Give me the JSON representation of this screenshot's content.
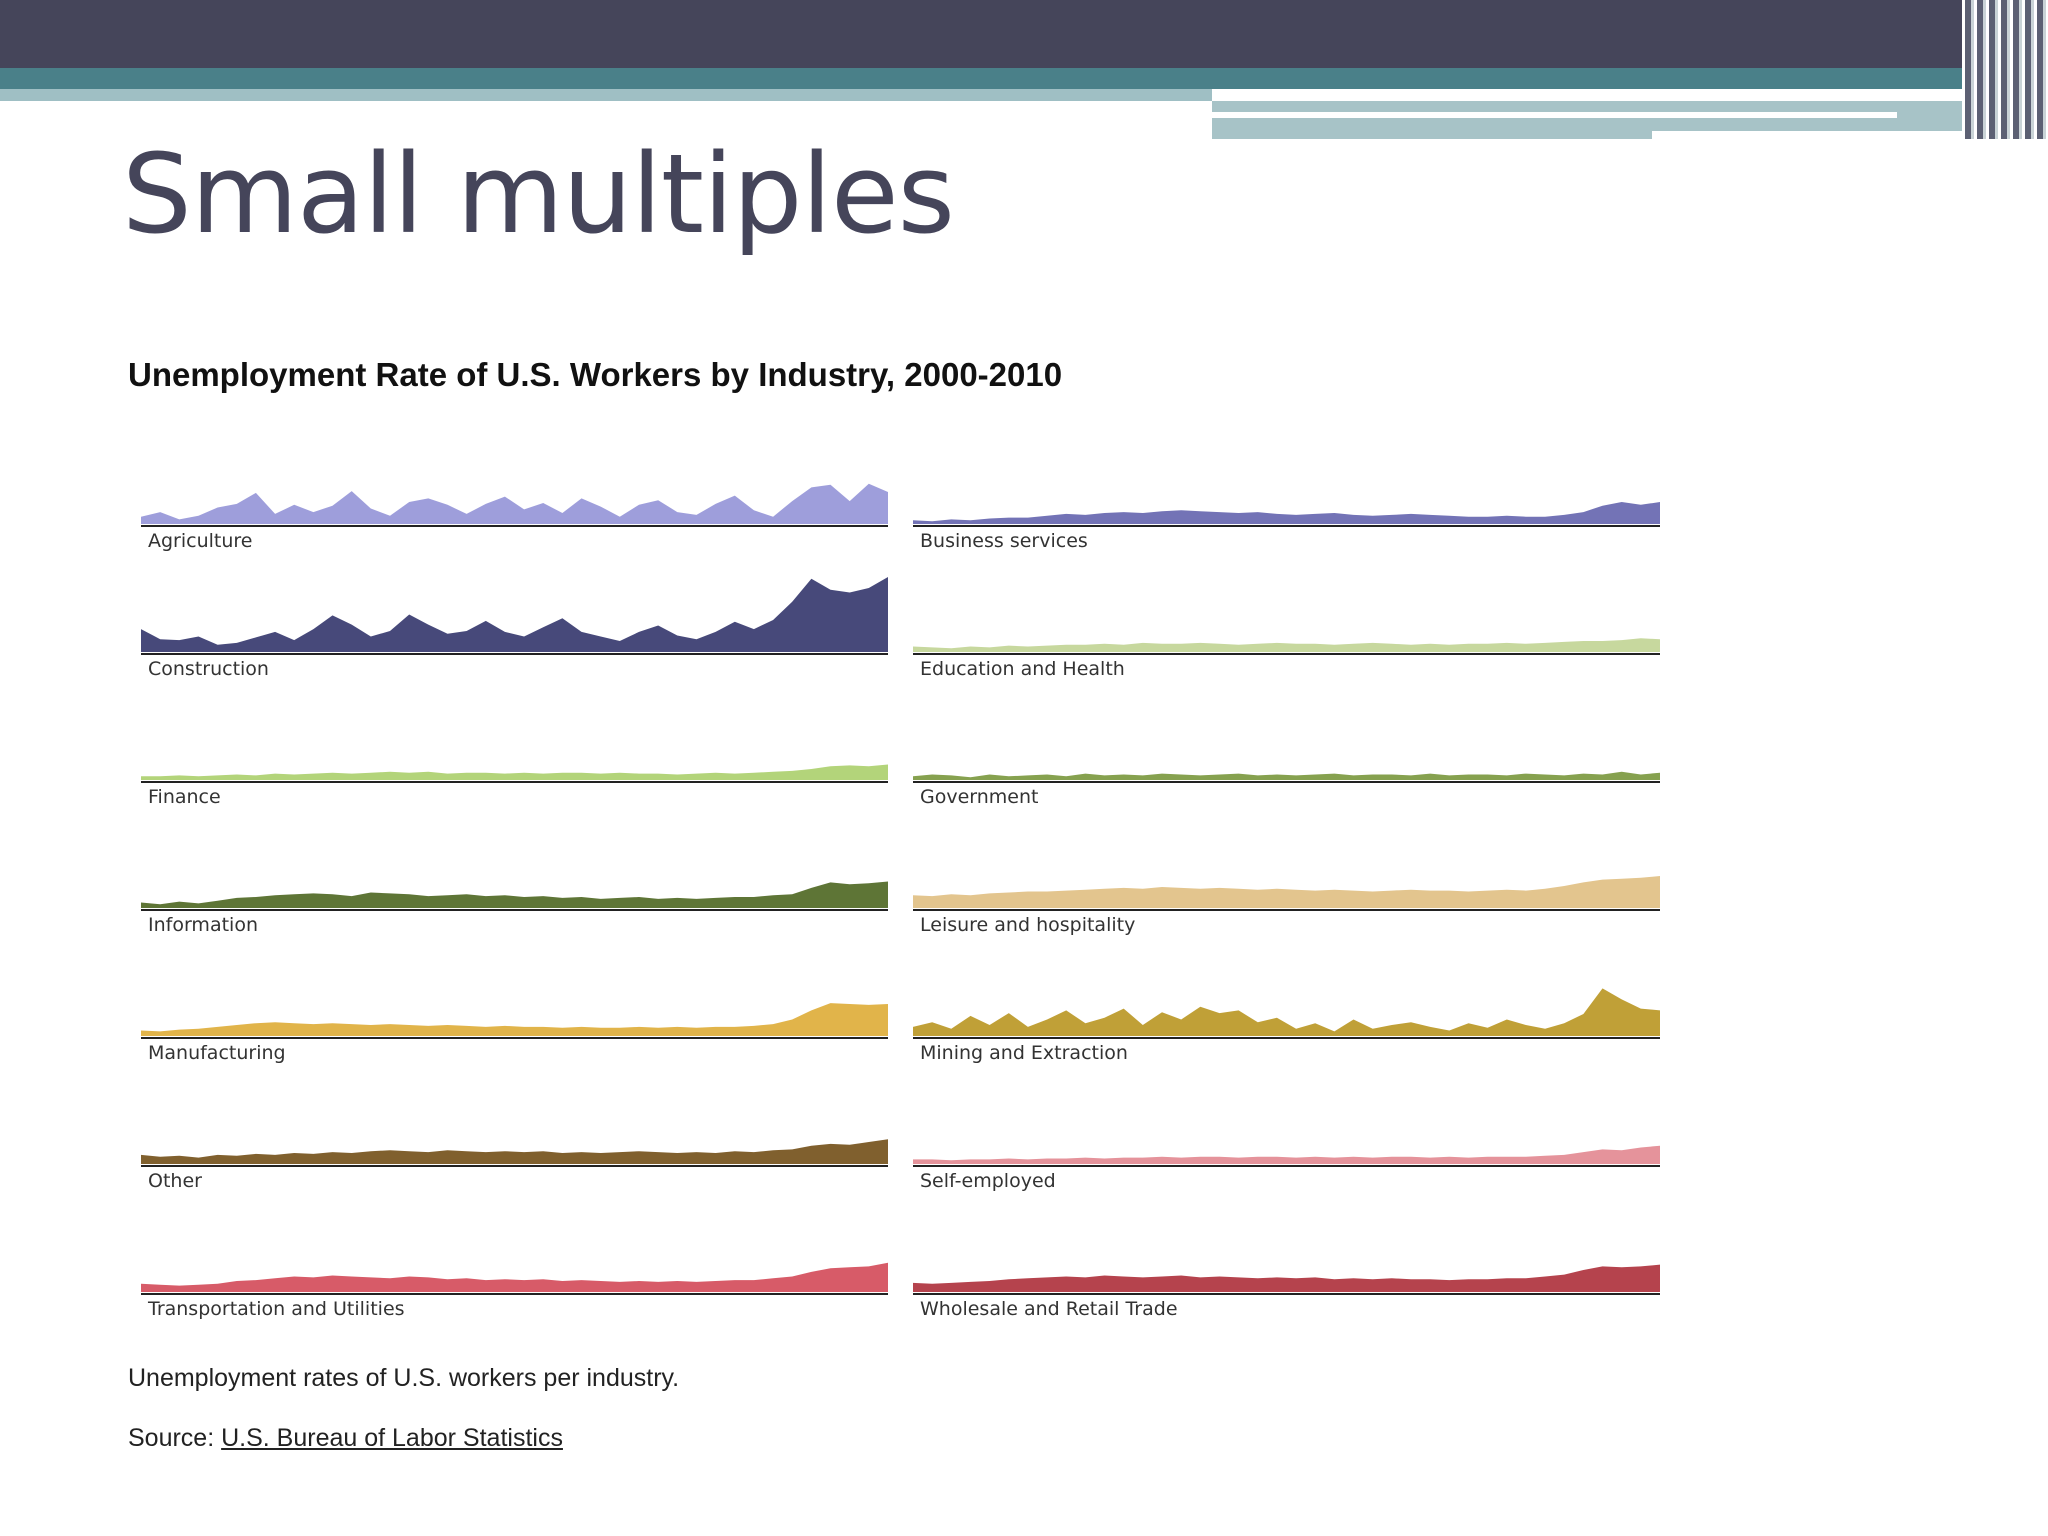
{
  "slide": {
    "title": "Small multiples"
  },
  "chart_data": {
    "type": "area",
    "title": "Unemployment Rate of U.S. Workers by Industry, 2000-2010",
    "x_range": [
      "2000",
      "2010"
    ],
    "grid": false,
    "legend": "none",
    "panels": [
      {
        "name": "Agriculture",
        "color": "#9e9edb",
        "values": [
          8,
          13,
          5,
          9,
          18,
          22,
          34,
          11,
          21,
          13,
          20,
          36,
          17,
          9,
          24,
          28,
          21,
          11,
          22,
          30,
          16,
          23,
          12,
          28,
          19,
          8,
          21,
          26,
          13,
          10,
          22,
          31,
          15,
          8,
          25,
          40,
          43,
          25,
          44,
          35
        ]
      },
      {
        "name": "Business services",
        "color": "#7373b6",
        "values": [
          4,
          3,
          5,
          4,
          6,
          7,
          7,
          9,
          11,
          10,
          12,
          13,
          12,
          14,
          15,
          14,
          13,
          12,
          13,
          11,
          10,
          11,
          12,
          10,
          9,
          10,
          11,
          10,
          9,
          8,
          8,
          9,
          8,
          8,
          10,
          13,
          20,
          24,
          21,
          24
        ]
      },
      {
        "name": "Construction",
        "color": "#47497a",
        "values": [
          25,
          14,
          13,
          17,
          8,
          10,
          16,
          22,
          13,
          25,
          40,
          30,
          17,
          23,
          41,
          30,
          20,
          23,
          34,
          22,
          17,
          27,
          37,
          22,
          17,
          12,
          22,
          29,
          18,
          14,
          22,
          33,
          25,
          35,
          55,
          80,
          68,
          65,
          70,
          82
        ]
      },
      {
        "name": "Education and Health",
        "color": "#c7d89e",
        "values": [
          6,
          5,
          4,
          6,
          5,
          7,
          6,
          7,
          8,
          8,
          9,
          8,
          10,
          9,
          9,
          10,
          9,
          8,
          9,
          10,
          9,
          9,
          8,
          9,
          10,
          9,
          8,
          9,
          8,
          9,
          9,
          10,
          9,
          10,
          11,
          12,
          12,
          13,
          15,
          14
        ]
      },
      {
        "name": "Finance",
        "color": "#b3d47a",
        "values": [
          4,
          4,
          5,
          4,
          5,
          6,
          5,
          7,
          6,
          7,
          8,
          7,
          8,
          9,
          8,
          9,
          7,
          8,
          8,
          7,
          8,
          7,
          8,
          8,
          7,
          8,
          7,
          7,
          6,
          7,
          8,
          7,
          8,
          9,
          10,
          12,
          15,
          16,
          15,
          17
        ]
      },
      {
        "name": "Government",
        "color": "#86a14f",
        "values": [
          4,
          6,
          5,
          3,
          6,
          4,
          5,
          6,
          4,
          7,
          5,
          6,
          5,
          7,
          6,
          5,
          6,
          7,
          5,
          6,
          5,
          6,
          7,
          5,
          6,
          6,
          5,
          7,
          5,
          6,
          6,
          5,
          7,
          6,
          5,
          7,
          6,
          9,
          6,
          8
        ]
      },
      {
        "name": "Information",
        "color": "#5e7536",
        "values": [
          6,
          4,
          7,
          5,
          8,
          11,
          12,
          14,
          15,
          16,
          15,
          13,
          17,
          16,
          15,
          13,
          14,
          15,
          13,
          14,
          12,
          13,
          11,
          12,
          10,
          11,
          12,
          10,
          11,
          10,
          11,
          12,
          12,
          14,
          15,
          22,
          28,
          26,
          27,
          29
        ]
      },
      {
        "name": "Leisure and hospitality",
        "color": "#e3c58e",
        "values": [
          14,
          13,
          15,
          14,
          16,
          17,
          18,
          18,
          19,
          20,
          21,
          22,
          21,
          23,
          22,
          21,
          22,
          21,
          20,
          21,
          20,
          19,
          20,
          19,
          18,
          19,
          20,
          19,
          19,
          18,
          19,
          20,
          19,
          21,
          24,
          28,
          31,
          32,
          33,
          35
        ]
      },
      {
        "name": "Manufacturing",
        "color": "#e1b44a",
        "values": [
          6,
          5,
          7,
          8,
          10,
          12,
          14,
          15,
          14,
          13,
          14,
          13,
          12,
          13,
          12,
          11,
          12,
          11,
          10,
          11,
          10,
          10,
          9,
          10,
          9,
          9,
          10,
          9,
          10,
          9,
          10,
          10,
          11,
          13,
          18,
          28,
          36,
          35,
          34,
          35
        ]
      },
      {
        "name": "Mining and Extraction",
        "color": "#c0a037",
        "values": [
          10,
          15,
          8,
          22,
          12,
          25,
          10,
          18,
          28,
          14,
          20,
          30,
          12,
          26,
          18,
          32,
          25,
          28,
          15,
          20,
          8,
          14,
          5,
          18,
          8,
          12,
          15,
          10,
          6,
          14,
          9,
          18,
          12,
          8,
          14,
          24,
          52,
          40,
          30,
          28
        ]
      },
      {
        "name": "Other",
        "color": "#80602e",
        "values": [
          10,
          8,
          9,
          7,
          10,
          9,
          11,
          10,
          12,
          11,
          13,
          12,
          14,
          15,
          14,
          13,
          15,
          14,
          13,
          14,
          13,
          14,
          12,
          13,
          12,
          13,
          14,
          13,
          12,
          13,
          12,
          14,
          13,
          15,
          16,
          20,
          22,
          21,
          24,
          27
        ]
      },
      {
        "name": "Self-employed",
        "color": "#e5939b",
        "values": [
          5,
          5,
          4,
          5,
          5,
          6,
          5,
          6,
          6,
          7,
          6,
          7,
          7,
          8,
          7,
          8,
          8,
          7,
          8,
          8,
          7,
          8,
          7,
          8,
          7,
          8,
          8,
          7,
          8,
          7,
          8,
          8,
          8,
          9,
          10,
          13,
          16,
          15,
          18,
          20
        ]
      },
      {
        "name": "Transportation and Utilities",
        "color": "#d75b68",
        "values": [
          9,
          8,
          7,
          8,
          9,
          12,
          13,
          15,
          17,
          16,
          18,
          17,
          16,
          15,
          17,
          16,
          14,
          15,
          13,
          14,
          13,
          14,
          12,
          13,
          12,
          11,
          12,
          11,
          12,
          11,
          12,
          13,
          13,
          15,
          17,
          22,
          26,
          27,
          28,
          32
        ]
      },
      {
        "name": "Wholesale and Retail Trade",
        "color": "#b5434d",
        "values": [
          10,
          9,
          10,
          11,
          12,
          14,
          15,
          16,
          17,
          16,
          18,
          17,
          16,
          17,
          18,
          16,
          17,
          16,
          15,
          16,
          15,
          16,
          14,
          15,
          14,
          15,
          14,
          14,
          13,
          14,
          14,
          15,
          15,
          17,
          19,
          24,
          28,
          27,
          28,
          30
        ]
      }
    ]
  },
  "footer": {
    "caption": "Unemployment rates of U.S. workers per industry.",
    "source_label": "Source: ",
    "source_link": "U.S. Bureau of Labor Statistics"
  }
}
